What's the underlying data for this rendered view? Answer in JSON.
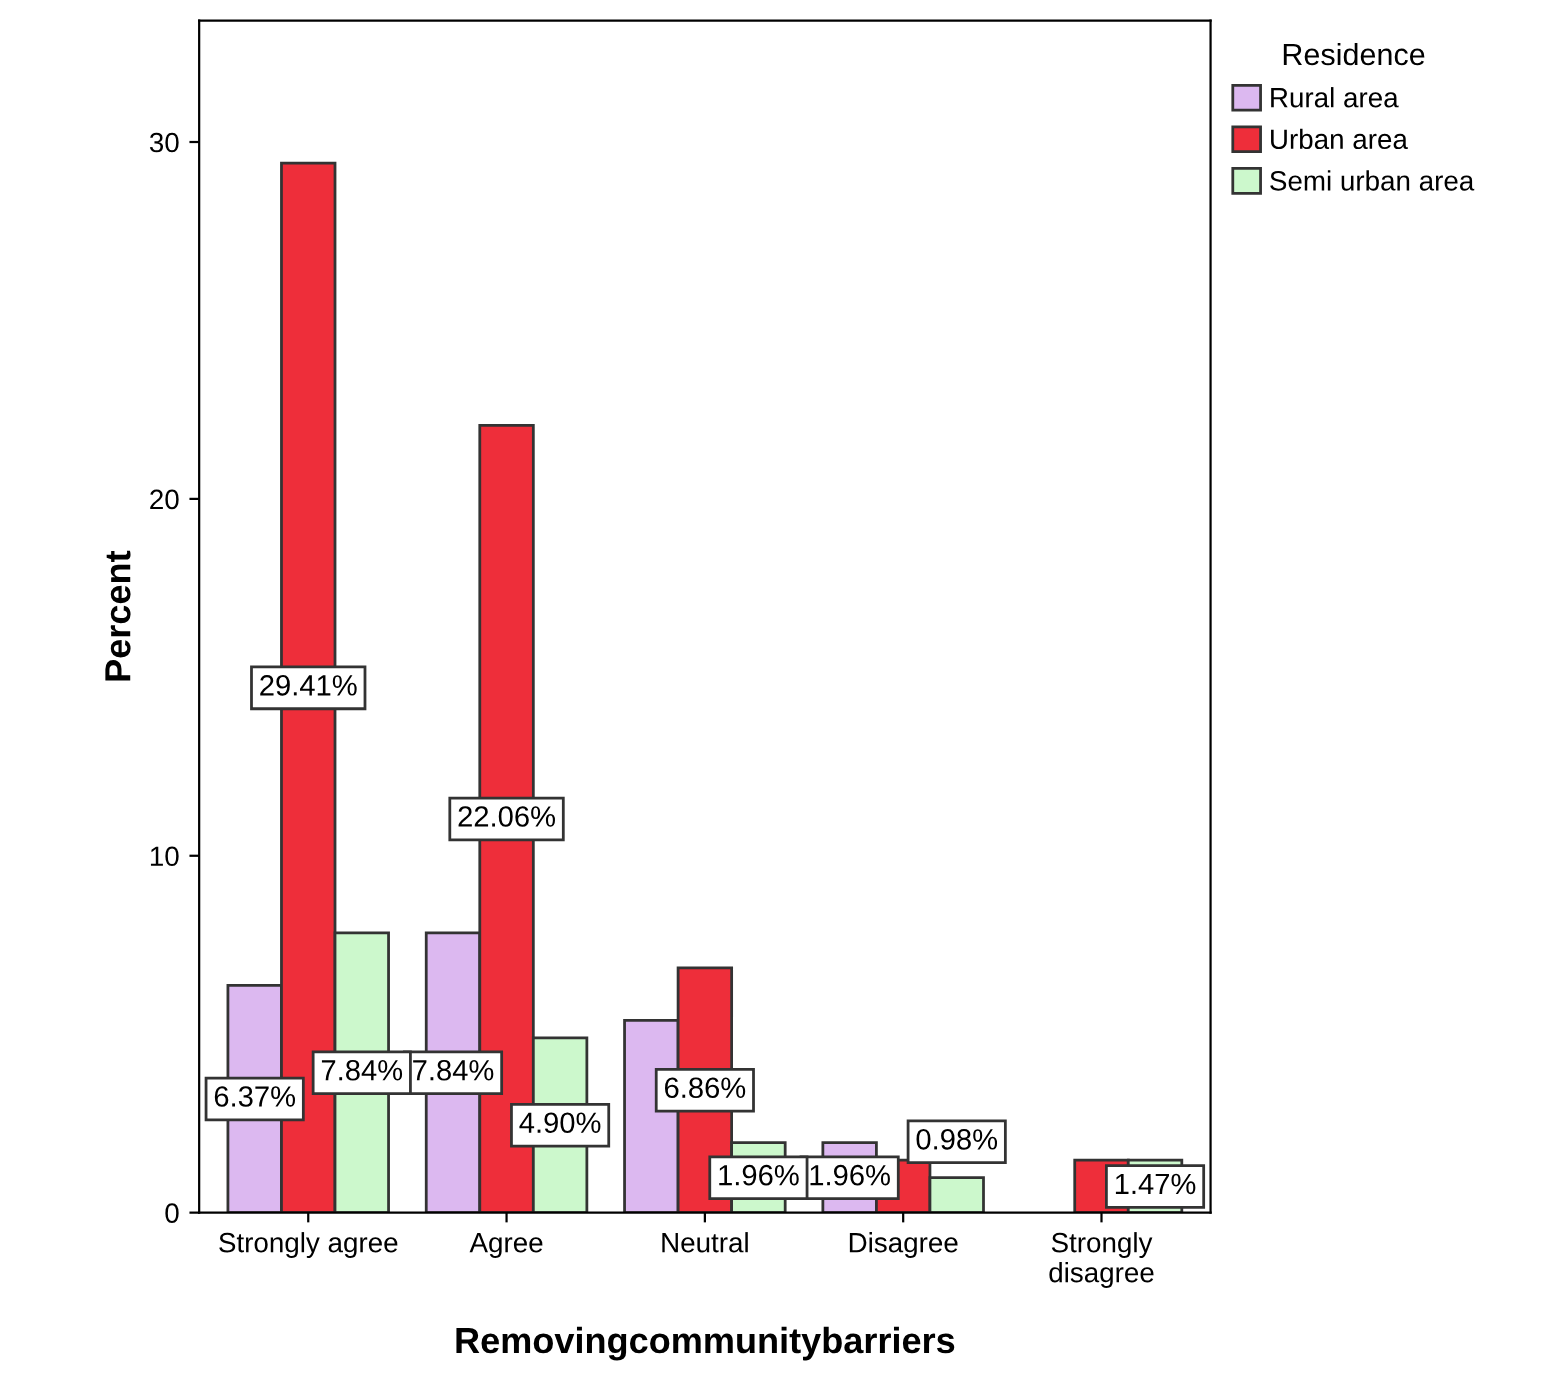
{
  "chart_data": {
    "type": "bar",
    "xlabel": "Removingcommunitybarriers",
    "ylabel": "Percent",
    "legend_title": "Residence",
    "categories": [
      "Strongly agree",
      "Agree",
      "Neutral",
      "Disagree",
      "Strongly\ndisagree"
    ],
    "series": [
      {
        "name": "Rural area",
        "color": "#dcb8f0",
        "values": [
          6.37,
          7.84,
          5.39,
          1.96,
          null
        ],
        "value_labels": [
          "6.37%",
          "7.84%",
          null,
          "1.96%",
          null
        ]
      },
      {
        "name": "Urban area",
        "color": "#ee2e3a",
        "values": [
          29.41,
          22.06,
          6.86,
          1.47,
          1.47
        ],
        "value_labels": [
          "29.41%",
          "22.06%",
          "6.86%",
          null,
          null
        ]
      },
      {
        "name": "Semi urban area",
        "color": "#ccf8cc",
        "values": [
          7.84,
          4.9,
          1.96,
          0.98,
          1.47
        ],
        "value_labels": [
          "7.84%",
          "4.90%",
          "1.96%",
          "0.98%",
          "1.47%"
        ]
      }
    ],
    "ylim": [
      0,
      33.4
    ],
    "yticks": [
      0,
      10,
      20,
      30
    ],
    "grid": false,
    "legend": "right"
  }
}
